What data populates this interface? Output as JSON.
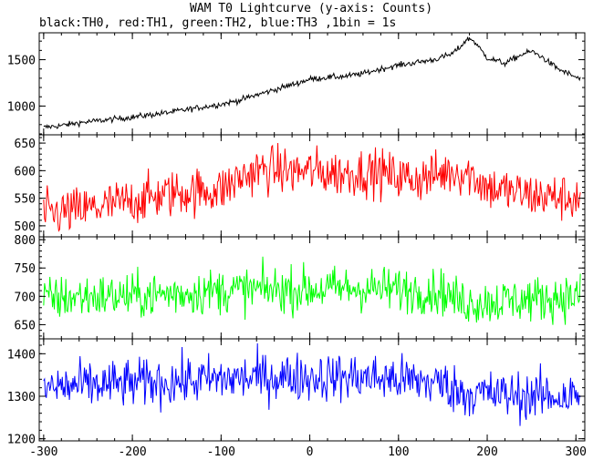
{
  "chart_data": {
    "type": "line",
    "title": "WAM T0 Lightcurve (y-axis: Counts)",
    "subtitle": "black:TH0, red:TH1, green:TH2, blue:TH3 ,1bin = 1s",
    "xlabel": "",
    "ylabel": "",
    "xlim": [
      -305,
      310
    ],
    "x_ticks": [
      -300,
      -200,
      -100,
      0,
      100,
      200,
      300
    ],
    "x_tick_labels": [
      "-300",
      "-200",
      "-100",
      "0",
      "100",
      "200",
      "300"
    ],
    "grid": false,
    "panels": [
      {
        "color": "#000000",
        "ylim": [
          690,
          1790
        ],
        "y_ticks": [
          1000,
          1500
        ],
        "y_tick_labels": [
          "1000",
          "1500"
        ],
        "series": {
          "x": [
            -300,
            -280,
            -260,
            -240,
            -220,
            -200,
            -180,
            -160,
            -140,
            -120,
            -100,
            -80,
            -60,
            -40,
            -20,
            0,
            20,
            40,
            60,
            80,
            100,
            120,
            140,
            160,
            170,
            175,
            180,
            185,
            190,
            200,
            220,
            240,
            250,
            260,
            280,
            300,
            305
          ],
          "y": [
            770,
            790,
            820,
            840,
            860,
            880,
            905,
            930,
            960,
            990,
            1020,
            1060,
            1120,
            1175,
            1230,
            1290,
            1310,
            1320,
            1350,
            1400,
            1440,
            1470,
            1500,
            1560,
            1640,
            1700,
            1730,
            1700,
            1640,
            1520,
            1460,
            1560,
            1590,
            1540,
            1400,
            1310,
            1290
          ],
          "noise": 22
        }
      },
      {
        "color": "#ff0000",
        "ylim": [
          480,
          665
        ],
        "y_ticks": [
          500,
          550,
          600,
          650
        ],
        "y_tick_labels": [
          "500",
          "550",
          "600",
          "650"
        ],
        "series": {
          "x": [
            -300,
            -250,
            -200,
            -150,
            -100,
            -80,
            -60,
            -40,
            -20,
            0,
            20,
            40,
            60,
            80,
            100,
            120,
            140,
            160,
            180,
            200,
            250,
            300,
            305
          ],
          "y": [
            520,
            530,
            545,
            560,
            565,
            585,
            600,
            602,
            598,
            600,
            596,
            595,
            598,
            596,
            588,
            585,
            590,
            600,
            595,
            570,
            555,
            550,
            548
          ],
          "noise": 30
        }
      },
      {
        "color": "#00ff00",
        "ylim": [
          625,
          805
        ],
        "y_ticks": [
          650,
          700,
          750,
          800
        ],
        "y_tick_labels": [
          "650",
          "700",
          "750",
          "800"
        ],
        "series": {
          "x": [
            -300,
            -250,
            -200,
            -150,
            -100,
            -50,
            0,
            50,
            100,
            150,
            170,
            200,
            250,
            300,
            305
          ],
          "y": [
            695,
            700,
            700,
            705,
            710,
            712,
            712,
            714,
            712,
            708,
            690,
            690,
            695,
            700,
            700
          ],
          "noise": 28
        }
      },
      {
        "color": "#0000ff",
        "ylim": [
          1195,
          1435
        ],
        "y_ticks": [
          1200,
          1300,
          1400
        ],
        "y_tick_labels": [
          "1200",
          "1300",
          "1400"
        ],
        "series": {
          "x": [
            -300,
            -250,
            -200,
            -150,
            -100,
            -50,
            0,
            50,
            100,
            150,
            170,
            200,
            250,
            300,
            305
          ],
          "y": [
            1320,
            1325,
            1330,
            1335,
            1340,
            1345,
            1345,
            1345,
            1340,
            1330,
            1310,
            1305,
            1300,
            1300,
            1300
          ],
          "noise": 40
        }
      }
    ]
  }
}
